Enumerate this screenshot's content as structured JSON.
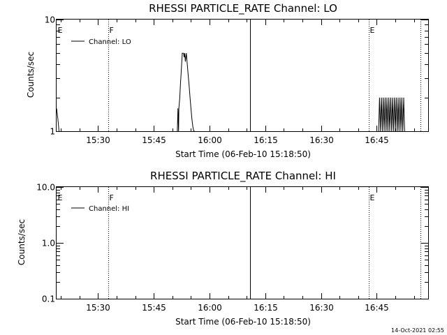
{
  "footer": {
    "timestamp": "14-Oct-2021 02:55"
  },
  "chart_data": [
    {
      "type": "line",
      "title": "RHESSI PARTICLE_RATE Channel: LO",
      "xlabel": "Start Time (06-Feb-10 15:18:50)",
      "ylabel": "Counts/sec",
      "yscale": "log",
      "ylim": [
        1,
        10
      ],
      "y_ticks": [
        {
          "value": 1,
          "label": "1"
        },
        {
          "value": 10,
          "label": "10"
        }
      ],
      "xlim": [
        "15:18:50",
        "16:58:50"
      ],
      "x_ticks": [
        {
          "value": "15:30:00",
          "label": "15:30"
        },
        {
          "value": "15:45:00",
          "label": "15:45"
        },
        {
          "value": "16:00:00",
          "label": "16:00"
        },
        {
          "value": "16:15:00",
          "label": "16:15"
        },
        {
          "value": "16:30:00",
          "label": "16:30"
        },
        {
          "value": "16:45:00",
          "label": "16:45"
        }
      ],
      "markers": [
        {
          "label": "E",
          "time": "15:18:50",
          "line": "none"
        },
        {
          "label": "F",
          "time": "15:32:50",
          "line": "dotted"
        },
        {
          "label": "",
          "time": "16:10:50",
          "line": "solid"
        },
        {
          "label": "E",
          "time": "16:42:50",
          "line": "dotted"
        },
        {
          "label": "",
          "time": "16:56:50",
          "line": "dotted"
        }
      ],
      "legend": {
        "position": "top-left",
        "label": "Channel: LO"
      },
      "series": [
        {
          "name": "Channel: LO",
          "segments": [
            {
              "x": [
                "15:18:50",
                "15:19:10",
                "15:19:30"
              ],
              "y": [
                1.6,
                1.3,
                1.0
              ]
            },
            {
              "x": [
                "15:51:20",
                "15:51:30",
                "15:51:40",
                "15:51:45",
                "15:52:00",
                "15:52:10",
                "15:52:20",
                "15:52:30",
                "15:52:40",
                "15:52:50",
                "15:53:00",
                "15:53:10",
                "15:53:20",
                "15:53:30",
                "15:53:45",
                "15:54:00",
                "15:54:15",
                "15:54:30",
                "15:54:45",
                "15:55:00",
                "15:55:15",
                "15:55:30",
                "15:55:45",
                "15:56:00"
              ],
              "y": [
                1.0,
                1.6,
                1.0,
                1.6,
                2.0,
                2.6,
                3.2,
                4.0,
                5.0,
                5.0,
                5.0,
                4.6,
                5.0,
                4.2,
                5.0,
                4.0,
                3.2,
                2.6,
                2.0,
                1.6,
                1.3,
                1.1,
                1.0,
                1.0
              ]
            },
            {
              "x": [
                "16:45:30",
                "16:45:45",
                "16:46:00",
                "16:46:15",
                "16:46:30",
                "16:46:45",
                "16:47:00",
                "16:47:15",
                "16:47:30",
                "16:47:45",
                "16:48:00",
                "16:48:15",
                "16:48:30",
                "16:48:45",
                "16:49:00",
                "16:49:15",
                "16:49:30",
                "16:49:45",
                "16:50:00",
                "16:50:15",
                "16:50:30",
                "16:50:45",
                "16:51:00",
                "16:51:15",
                "16:51:30",
                "16:51:45",
                "16:52:00",
                "16:52:15",
                "16:52:30"
              ],
              "y": [
                1.0,
                2.0,
                1.0,
                2.0,
                1.0,
                2.0,
                1.0,
                2.0,
                1.0,
                2.0,
                1.0,
                2.0,
                1.0,
                2.0,
                1.0,
                2.0,
                1.0,
                2.0,
                1.0,
                2.0,
                1.0,
                2.0,
                1.0,
                2.0,
                1.0,
                2.0,
                1.0,
                2.0,
                1.0
              ]
            }
          ]
        }
      ]
    },
    {
      "type": "line",
      "title": "RHESSI PARTICLE_RATE Channel: HI",
      "xlabel": "Start Time (06-Feb-10 15:18:50)",
      "ylabel": "Counts/sec",
      "yscale": "log",
      "ylim": [
        0.1,
        10
      ],
      "y_ticks": [
        {
          "value": 0.1,
          "label": "0.1"
        },
        {
          "value": 1,
          "label": "1.0"
        },
        {
          "value": 10,
          "label": "10.0"
        }
      ],
      "xlim": [
        "15:18:50",
        "16:58:50"
      ],
      "x_ticks": [
        {
          "value": "15:30:00",
          "label": "15:30"
        },
        {
          "value": "15:45:00",
          "label": "15:45"
        },
        {
          "value": "16:00:00",
          "label": "16:00"
        },
        {
          "value": "16:15:00",
          "label": "16:15"
        },
        {
          "value": "16:30:00",
          "label": "16:30"
        },
        {
          "value": "16:45:00",
          "label": "16:45"
        }
      ],
      "markers": [
        {
          "label": "E",
          "time": "15:18:50",
          "line": "none"
        },
        {
          "label": "F",
          "time": "15:32:50",
          "line": "dotted"
        },
        {
          "label": "",
          "time": "16:10:50",
          "line": "solid"
        },
        {
          "label": "E",
          "time": "16:42:50",
          "line": "dotted"
        },
        {
          "label": "",
          "time": "16:56:50",
          "line": "dotted"
        }
      ],
      "legend": {
        "position": "top-left",
        "label": "Channel: HI"
      },
      "series": [
        {
          "name": "Channel: HI",
          "segments": []
        }
      ]
    }
  ]
}
